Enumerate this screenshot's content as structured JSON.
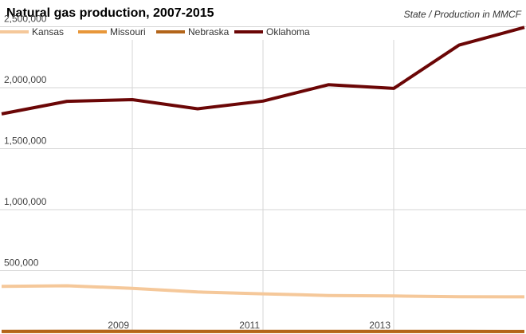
{
  "chart_data": {
    "type": "line",
    "title": "Natural gas production, 2007-2015",
    "subtitle": "State / Production in MMCF",
    "x": [
      2007,
      2008,
      2009,
      2010,
      2011,
      2012,
      2013,
      2014,
      2015
    ],
    "x_tick_labels": [
      "2009",
      "2011",
      "2013"
    ],
    "y_tick_labels": [
      "500,000",
      "1,000,000",
      "1,500,000",
      "2,000,000",
      "2,500,000"
    ],
    "xlim": [
      2007,
      2015
    ],
    "ylim": [
      0,
      2550000
    ],
    "grid": true,
    "legend_position": "top-left",
    "series": [
      {
        "name": "Kansas",
        "color": "#f5c89a",
        "values": [
          371000,
          376000,
          355000,
          325000,
          310000,
          296000,
          292000,
          286000,
          285000
        ]
      },
      {
        "name": "Missouri",
        "color": "#e8973a",
        "values": [
          0,
          0,
          0,
          0,
          0,
          0,
          0,
          0,
          0
        ]
      },
      {
        "name": "Nebraska",
        "color": "#b3651a",
        "values": [
          2000,
          2500,
          2800,
          2000,
          1800,
          1500,
          1200,
          1000,
          800
        ]
      },
      {
        "name": "Oklahoma",
        "color": "#6b0606",
        "values": [
          1785000,
          1888000,
          1902000,
          1827000,
          1890000,
          2024000,
          1994000,
          2349000,
          2495000
        ]
      }
    ]
  }
}
